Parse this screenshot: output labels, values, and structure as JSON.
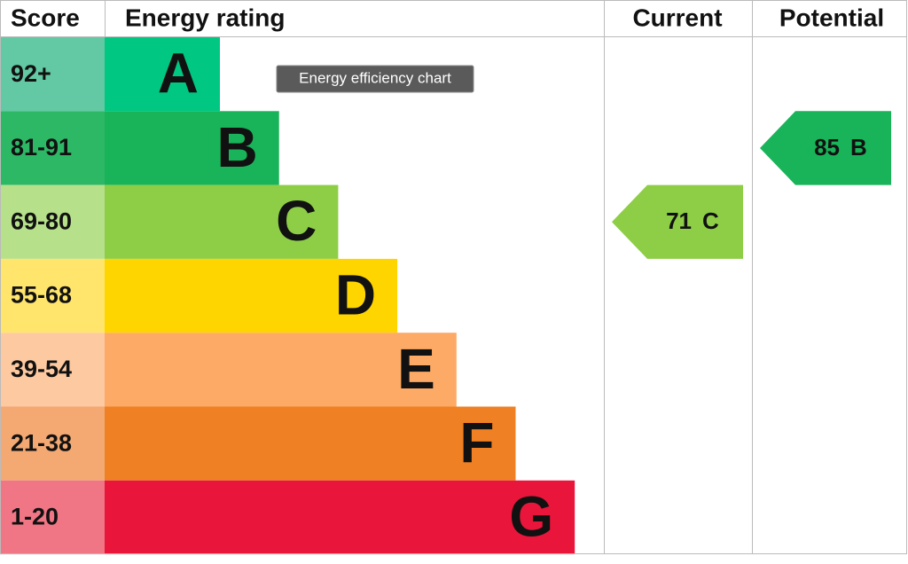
{
  "chart_data": {
    "type": "epc",
    "headers": {
      "score": "Score",
      "rating": "Energy rating",
      "current": "Current",
      "potential": "Potential"
    },
    "tooltip": "Energy efficiency chart",
    "bands": [
      {
        "score": "92+",
        "letter": "A",
        "color": "#00c781",
        "score_color": "#63c9a4"
      },
      {
        "score": "81-91",
        "letter": "B",
        "color": "#19b459",
        "score_color": "#2db866"
      },
      {
        "score": "69-80",
        "letter": "C",
        "color": "#8dce46",
        "score_color": "#b6e08a"
      },
      {
        "score": "55-68",
        "letter": "D",
        "color": "#ffd500",
        "score_color": "#ffe56b"
      },
      {
        "score": "39-54",
        "letter": "E",
        "color": "#fcaa65",
        "score_color": "#fdc9a0"
      },
      {
        "score": "21-38",
        "letter": "F",
        "color": "#ef8023",
        "score_color": "#f4a872"
      },
      {
        "score": "1-20",
        "letter": "G",
        "color": "#e9153b",
        "score_color": "#f07585"
      }
    ],
    "current": {
      "value": 71,
      "letter": "C"
    },
    "potential": {
      "value": 85,
      "letter": "B"
    }
  }
}
